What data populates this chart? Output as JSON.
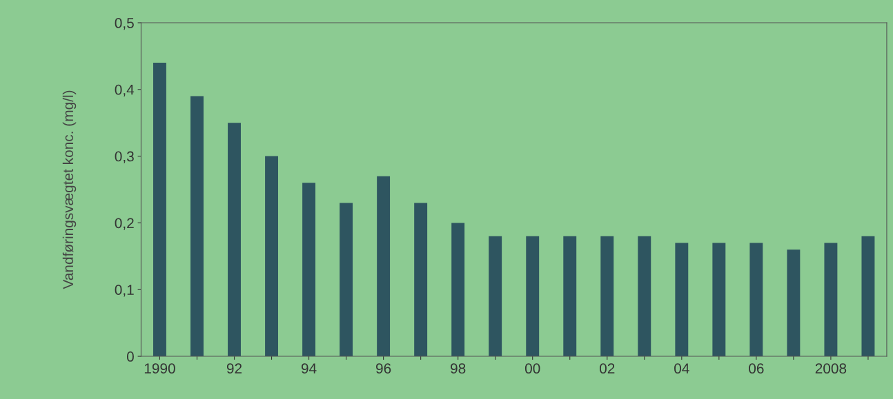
{
  "chart_data": {
    "type": "bar",
    "ylabel": "Vandføringsvægtet konc. (mg/l)",
    "categories": [
      "1990",
      null,
      "92",
      null,
      "94",
      null,
      "96",
      null,
      "98",
      null,
      "00",
      null,
      "02",
      null,
      "04",
      null,
      "06",
      null,
      "2008",
      null
    ],
    "series": [
      {
        "color": "#2e5560",
        "values": [
          0.44,
          0.39,
          0.35,
          0.3,
          0.26,
          0.23,
          0.27,
          0.23,
          0.2,
          0.18,
          0.18,
          0.18,
          0.18,
          0.18,
          0.17,
          0.17,
          0.17,
          0.16,
          0.17,
          0.18
        ]
      }
    ],
    "ylim": [
      0,
      0.5
    ],
    "yticks": [
      {
        "value": 0,
        "label": "0"
      },
      {
        "value": 0.1,
        "label": "0,1"
      },
      {
        "value": 0.2,
        "label": "0,2"
      },
      {
        "value": 0.3,
        "label": "0,3"
      },
      {
        "value": 0.4,
        "label": "0,4"
      },
      {
        "value": 0.5,
        "label": "0,5"
      }
    ],
    "grid": false,
    "legend": false
  }
}
